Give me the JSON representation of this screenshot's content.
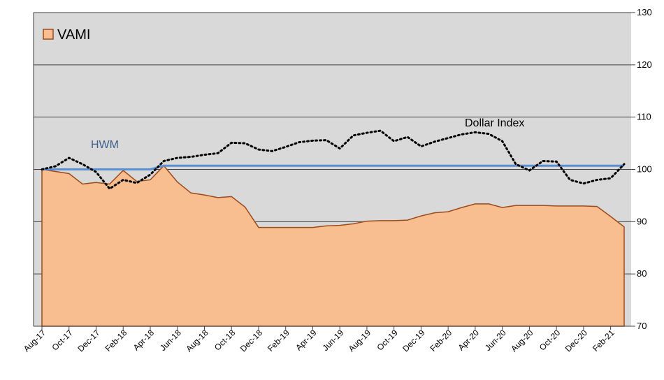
{
  "chart_data": {
    "type": "area",
    "categories": [
      "Aug-17",
      null,
      "Oct-17",
      null,
      "Dec-17",
      null,
      "Feb-18",
      null,
      "Apr-18",
      null,
      "Jun-18",
      null,
      "Aug-18",
      null,
      "Oct-18",
      null,
      "Dec-18",
      null,
      "Feb-19",
      null,
      "Apr-19",
      null,
      "Jun-19",
      null,
      "Aug-19",
      null,
      "Oct-19",
      null,
      "Dec-19",
      null,
      "Feb-20",
      null,
      "Apr-20",
      null,
      "Jun-20",
      null,
      "Aug-20",
      null,
      "Oct-20",
      null,
      "Dec-20",
      null,
      "Feb-21",
      null
    ],
    "series": [
      {
        "name": "VAMI",
        "style": "area",
        "color": "#f9be8f",
        "stroke": "#9c4a1a",
        "values": [
          100,
          99.6,
          99.2,
          97.2,
          97.5,
          97.2,
          99.8,
          97.7,
          98.0,
          100.7,
          97.6,
          95.5,
          95.1,
          94.6,
          94.8,
          92.8,
          88.9,
          88.9,
          88.9,
          88.9,
          88.9,
          89.2,
          89.3,
          89.6,
          90.1,
          90.2,
          90.2,
          90.3,
          91.1,
          91.7,
          91.9,
          92.7,
          93.4,
          93.4,
          92.7,
          93.1,
          93.1,
          93.1,
          93.0,
          93.0,
          93.0,
          92.9,
          91.0,
          89.0
        ]
      },
      {
        "style": "line",
        "color": "#5b8fd4",
        "values": [
          100,
          100,
          100,
          100,
          100,
          100,
          100,
          100,
          100,
          100.7,
          100.7,
          100.7,
          100.7,
          100.7,
          100.7,
          100.7,
          100.7,
          100.7,
          100.7,
          100.7,
          100.7,
          100.7,
          100.7,
          100.7,
          100.7,
          100.7,
          100.7,
          100.7,
          100.7,
          100.7,
          100.7,
          100.7,
          100.7,
          100.7,
          100.7,
          100.7,
          100.7,
          100.7,
          100.7,
          100.7,
          100.7,
          100.7,
          100.7,
          100.7
        ]
      },
      {
        "style": "dotted",
        "color": "#000000",
        "values": [
          100.0,
          100.6,
          102.2,
          101.0,
          99.5,
          96.3,
          98.0,
          97.4,
          99.0,
          101.6,
          102.2,
          102.4,
          102.8,
          103.1,
          105.1,
          105.0,
          103.8,
          103.5,
          104.3,
          105.2,
          105.5,
          105.6,
          104.0,
          106.5,
          107.0,
          107.4,
          105.4,
          106.2,
          104.4,
          105.3,
          106.0,
          106.7,
          107.1,
          106.8,
          105.4,
          101.0,
          99.8,
          101.6,
          101.5,
          98.0,
          97.3,
          98.0,
          98.3,
          101.0
        ]
      }
    ],
    "annotations": [
      "HWM",
      "Dollar Index"
    ],
    "ylim": [
      70,
      130
    ],
    "yticks": [
      70,
      80,
      90,
      100,
      110,
      120,
      130
    ],
    "y_axis_side": "right",
    "grid": true,
    "legend": "upper left"
  }
}
